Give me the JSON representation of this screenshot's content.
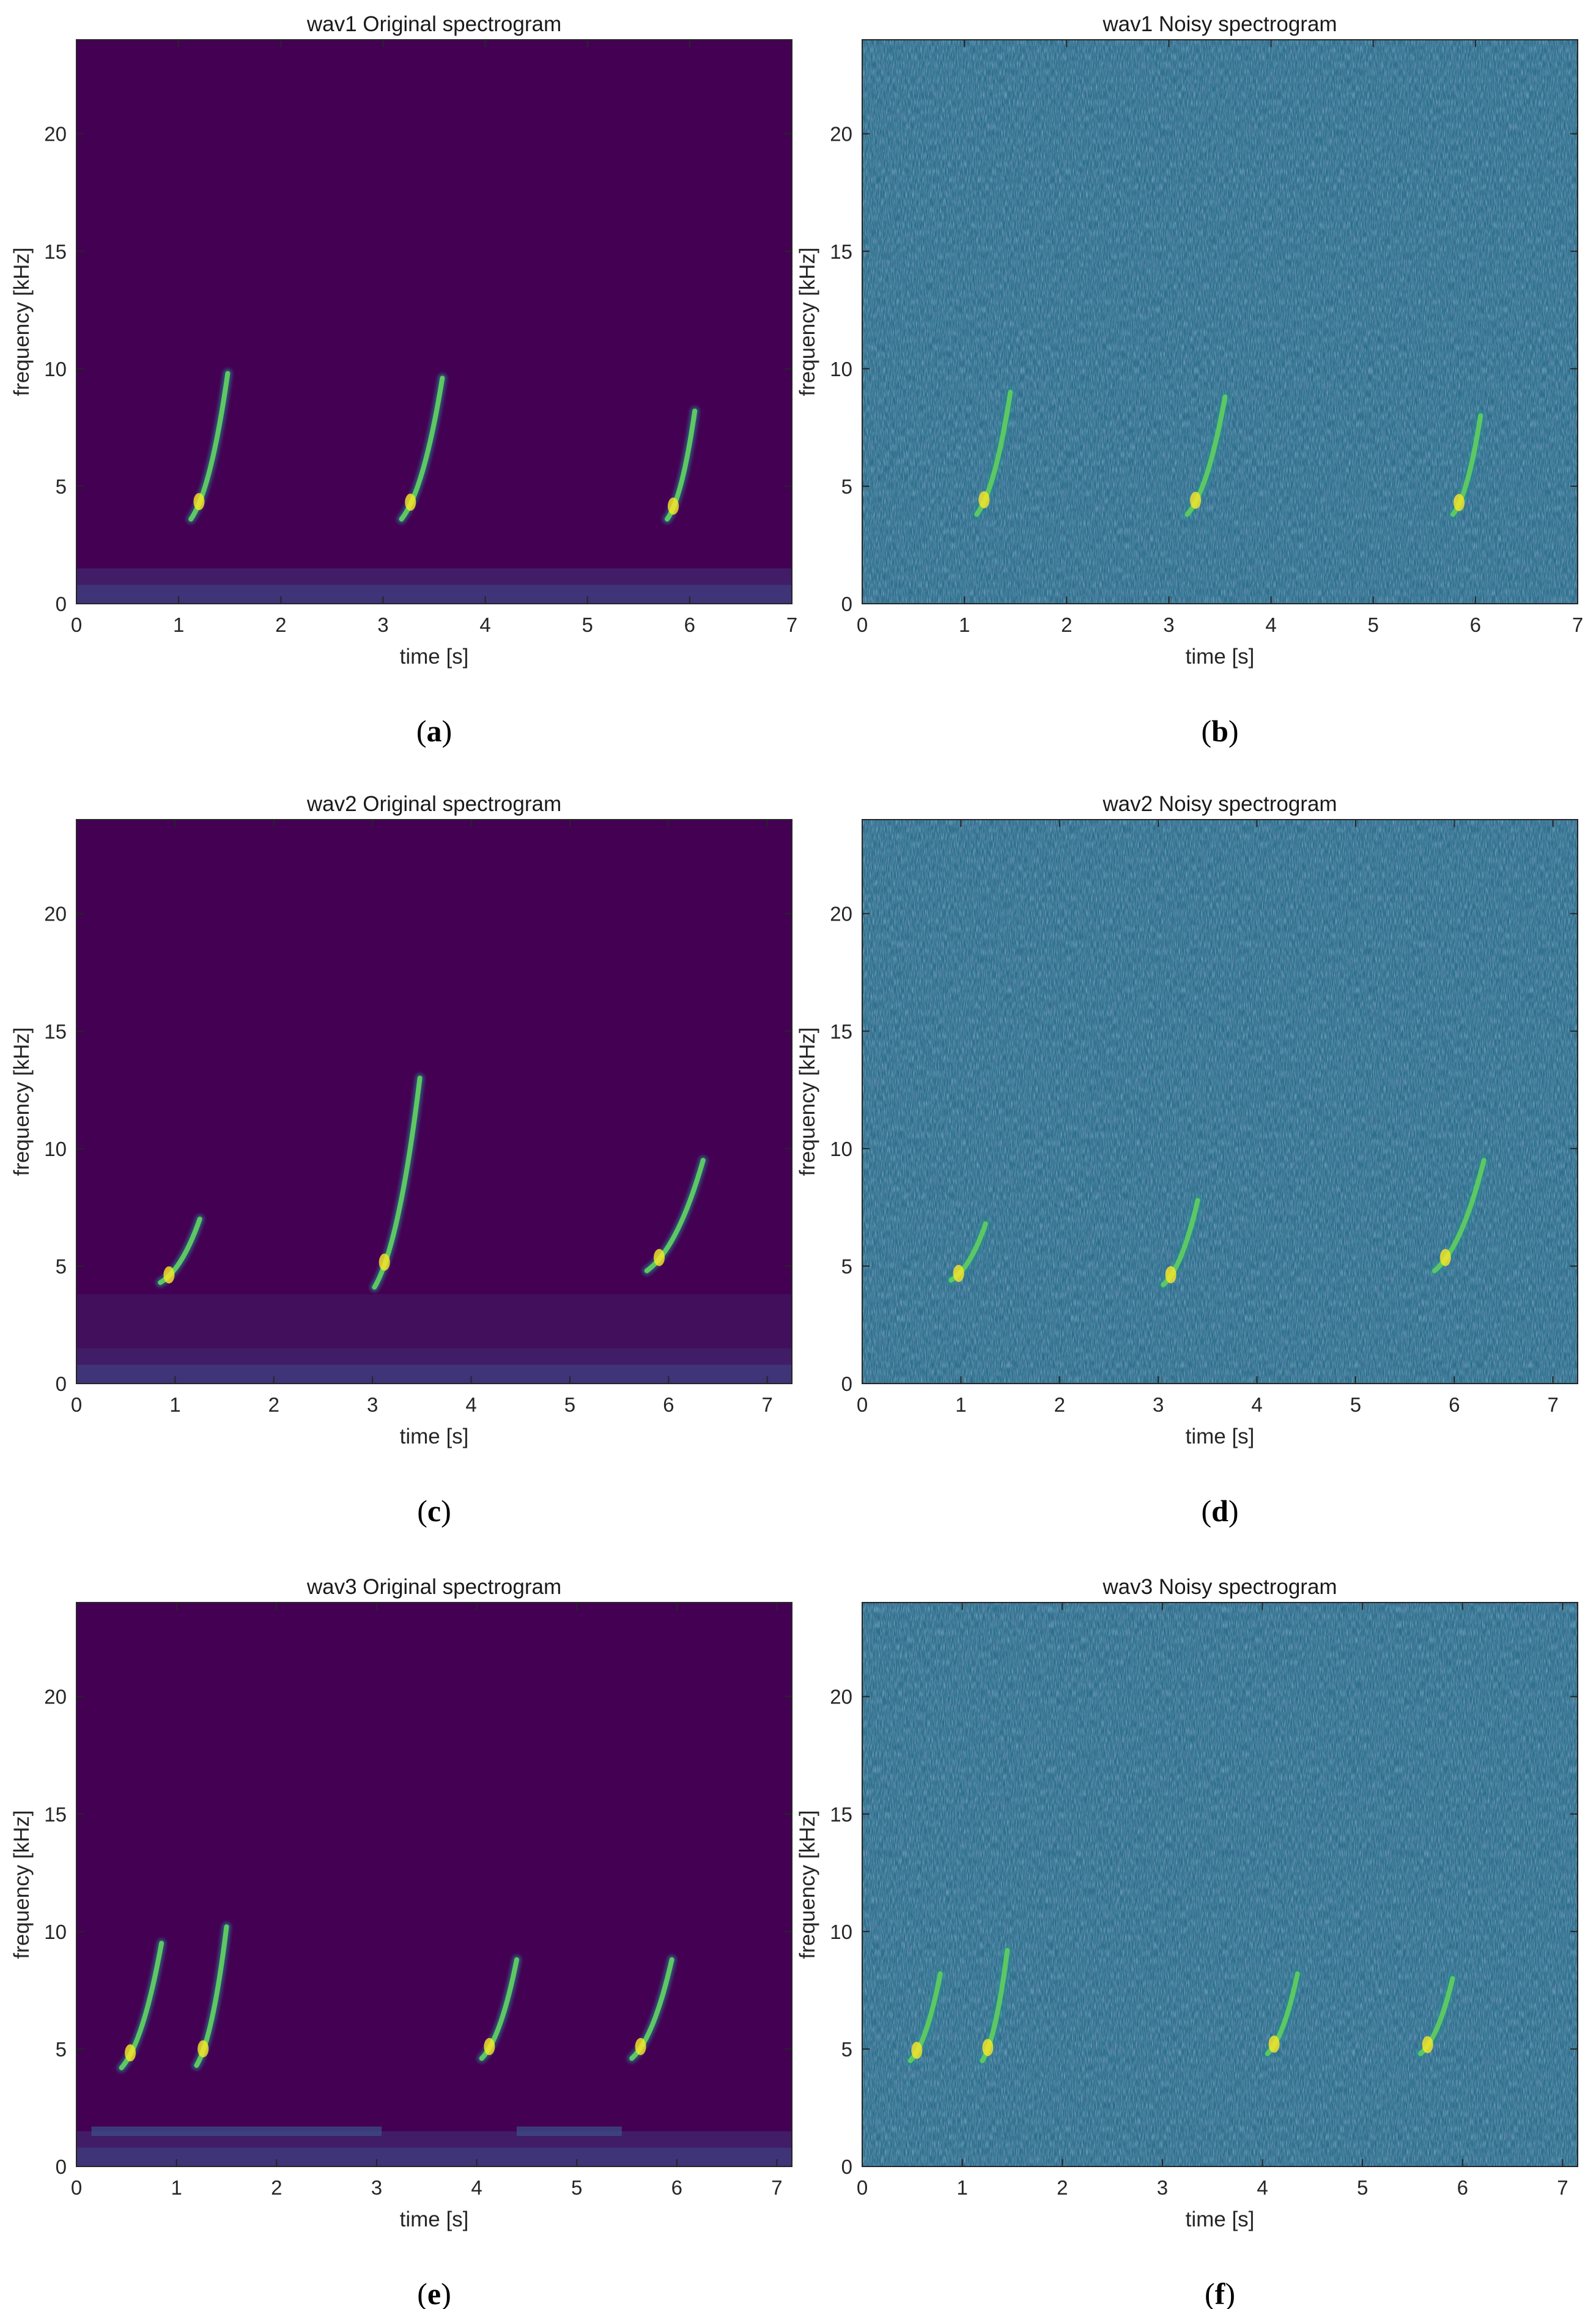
{
  "figure": {
    "colors": {
      "colormap": [
        "#440154",
        "#3b528b",
        "#21908c",
        "#5dc863",
        "#fde725"
      ],
      "axis": "#262626"
    }
  },
  "chart_data": [
    {
      "type": "heatmap",
      "panel": "a",
      "caption": {
        "open": "(",
        "letter": "a",
        "close": ")"
      },
      "title": "wav1 Original spectrogram",
      "xlabel": "time [s]",
      "ylabel": "frequency [kHz]",
      "xlim": [
        0,
        7
      ],
      "ylim": [
        0,
        24
      ],
      "xticks": [
        0,
        1,
        2,
        3,
        4,
        5,
        6,
        7
      ],
      "yticks": [
        0,
        5,
        10,
        15,
        20
      ],
      "background": "quiet",
      "calls": [
        {
          "t_start": 1.12,
          "f_start": 3.6,
          "t_end": 1.48,
          "f_end": 9.8
        },
        {
          "t_start": 3.18,
          "f_start": 3.6,
          "t_end": 3.58,
          "f_end": 9.6
        },
        {
          "t_start": 5.78,
          "f_start": 3.6,
          "t_end": 6.05,
          "f_end": 8.2
        }
      ]
    },
    {
      "type": "heatmap",
      "panel": "b",
      "caption": {
        "open": "(",
        "letter": "b",
        "close": ")"
      },
      "title": "wav1 Noisy spectrogram",
      "xlabel": "time [s]",
      "ylabel": "frequency [kHz]",
      "xlim": [
        0,
        7
      ],
      "ylim": [
        0,
        24
      ],
      "xticks": [
        0,
        1,
        2,
        3,
        4,
        5,
        6,
        7
      ],
      "yticks": [
        0,
        5,
        10,
        15,
        20
      ],
      "background": "noisy",
      "calls": [
        {
          "t_start": 1.12,
          "f_start": 3.8,
          "t_end": 1.45,
          "f_end": 9.0
        },
        {
          "t_start": 3.18,
          "f_start": 3.8,
          "t_end": 3.55,
          "f_end": 8.8
        },
        {
          "t_start": 5.78,
          "f_start": 3.8,
          "t_end": 6.05,
          "f_end": 8.0
        }
      ]
    },
    {
      "type": "heatmap",
      "panel": "c",
      "caption": {
        "open": "(",
        "letter": "c",
        "close": ")"
      },
      "title": "wav2 Original spectrogram",
      "xlabel": "time [s]",
      "ylabel": "frequency [kHz]",
      "xlim": [
        0,
        7.25
      ],
      "ylim": [
        0,
        24
      ],
      "xticks": [
        0,
        1,
        2,
        3,
        4,
        5,
        6,
        7
      ],
      "yticks": [
        0,
        5,
        10,
        15,
        20
      ],
      "background": "quiet",
      "calls": [
        {
          "t_start": 0.85,
          "f_start": 4.3,
          "t_end": 1.25,
          "f_end": 7.0
        },
        {
          "t_start": 3.02,
          "f_start": 4.1,
          "t_end": 3.48,
          "f_end": 13.0
        },
        {
          "t_start": 5.78,
          "f_start": 4.8,
          "t_end": 6.35,
          "f_end": 9.5
        }
      ]
    },
    {
      "type": "heatmap",
      "panel": "d",
      "caption": {
        "open": "(",
        "letter": "d",
        "close": ")"
      },
      "title": "wav2 Noisy spectrogram",
      "xlabel": "time [s]",
      "ylabel": "frequency [kHz]",
      "xlim": [
        0,
        7.25
      ],
      "ylim": [
        0,
        24
      ],
      "xticks": [
        0,
        1,
        2,
        3,
        4,
        5,
        6,
        7
      ],
      "yticks": [
        0,
        5,
        10,
        15,
        20
      ],
      "background": "noisy",
      "calls": [
        {
          "t_start": 0.9,
          "f_start": 4.4,
          "t_end": 1.25,
          "f_end": 6.8
        },
        {
          "t_start": 3.05,
          "f_start": 4.2,
          "t_end": 3.4,
          "f_end": 7.8
        },
        {
          "t_start": 5.8,
          "f_start": 4.8,
          "t_end": 6.3,
          "f_end": 9.5
        }
      ]
    },
    {
      "type": "heatmap",
      "panel": "e",
      "caption": {
        "open": "(",
        "letter": "e",
        "close": ")"
      },
      "title": "wav3 Original spectrogram",
      "xlabel": "time [s]",
      "ylabel": "frequency [kHz]",
      "xlim": [
        0,
        7.15
      ],
      "ylim": [
        0,
        24
      ],
      "xticks": [
        0,
        1,
        2,
        3,
        4,
        5,
        6,
        7
      ],
      "yticks": [
        0,
        5,
        10,
        15,
        20
      ],
      "background": "quiet",
      "calls": [
        {
          "t_start": 0.45,
          "f_start": 4.2,
          "t_end": 0.85,
          "f_end": 9.5
        },
        {
          "t_start": 1.2,
          "f_start": 4.3,
          "t_end": 1.5,
          "f_end": 10.2
        },
        {
          "t_start": 4.05,
          "f_start": 4.6,
          "t_end": 4.4,
          "f_end": 8.8
        },
        {
          "t_start": 5.55,
          "f_start": 4.6,
          "t_end": 5.95,
          "f_end": 8.8
        }
      ]
    },
    {
      "type": "heatmap",
      "panel": "f",
      "caption": {
        "open": "(",
        "letter": "f",
        "close": ")"
      },
      "title": "wav3 Noisy spectrogram",
      "xlabel": "time [s]",
      "ylabel": "frequency [kHz]",
      "xlim": [
        0,
        7.15
      ],
      "ylim": [
        0,
        24
      ],
      "xticks": [
        0,
        1,
        2,
        3,
        4,
        5,
        6,
        7
      ],
      "yticks": [
        0,
        5,
        10,
        15,
        20
      ],
      "background": "noisy",
      "calls": [
        {
          "t_start": 0.48,
          "f_start": 4.5,
          "t_end": 0.78,
          "f_end": 8.2
        },
        {
          "t_start": 1.2,
          "f_start": 4.5,
          "t_end": 1.45,
          "f_end": 9.2
        },
        {
          "t_start": 4.05,
          "f_start": 4.8,
          "t_end": 4.35,
          "f_end": 8.2
        },
        {
          "t_start": 5.58,
          "f_start": 4.8,
          "t_end": 5.9,
          "f_end": 8.0
        }
      ]
    }
  ]
}
